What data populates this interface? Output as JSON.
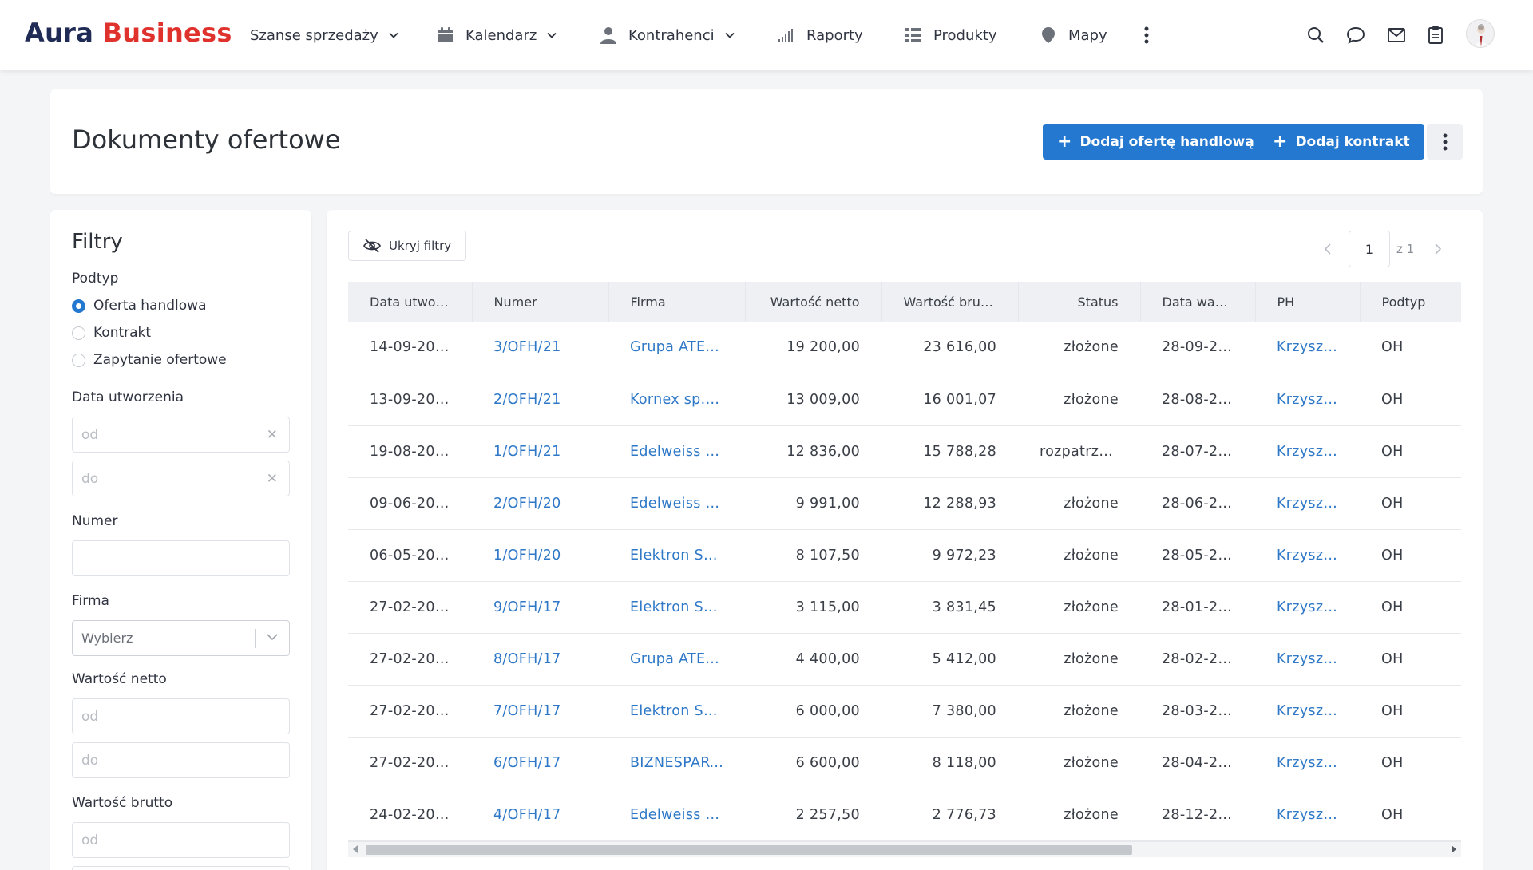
{
  "brand": {
    "part1": "Aura",
    "part2": "Business"
  },
  "nav": [
    {
      "label": "Szanse sprzedaży",
      "icon": "",
      "has_dropdown": true
    },
    {
      "label": "Kalendarz",
      "icon": "calendar-icon",
      "has_dropdown": true
    },
    {
      "label": "Kontrahenci",
      "icon": "person-icon",
      "has_dropdown": true
    },
    {
      "label": "Raporty",
      "icon": "signal-bars-icon",
      "has_dropdown": false
    },
    {
      "label": "Produkty",
      "icon": "list-grid-icon",
      "has_dropdown": false
    },
    {
      "label": "Mapy",
      "icon": "map-pin-icon",
      "has_dropdown": false
    }
  ],
  "header": {
    "title": "Dokumenty ofertowe",
    "add_offer_label": "Dodaj ofertę handlową",
    "add_contract_label": "Dodaj kontrakt"
  },
  "filters": {
    "title": "Filtry",
    "subtype_label": "Podtyp",
    "subtype_options": [
      "Oferta handlowa",
      "Kontrakt",
      "Zapytanie ofertowe"
    ],
    "subtype_selected": "Oferta handlowa",
    "created_label": "Data utworzenia",
    "from_placeholder": "od",
    "to_placeholder": "do",
    "number_label": "Numer",
    "number_value": "",
    "company_label": "Firma",
    "company_placeholder": "Wybierz",
    "net_label": "Wartość netto",
    "gross_label": "Wartość brutto"
  },
  "toolbar": {
    "hide_filters_label": "Ukryj filtry",
    "page_current": "1",
    "page_total_label": "z 1"
  },
  "table": {
    "columns": [
      "Data utworzenia",
      "Numer",
      "Firma",
      "Wartość netto",
      "Wartość brutto",
      "Status",
      "Data ważności",
      "PH",
      "Podtyp"
    ],
    "columns_display": [
      "Data utwor…",
      "Numer",
      "Firma",
      "Wartość netto",
      "Wartość brut…",
      "Status",
      "Data waż…",
      "PH",
      "Podtyp"
    ],
    "rows": [
      [
        "14-09-20…",
        "3/OFH/21",
        "Grupa ATE…",
        "19 200,00",
        "23 616,00",
        "złożone",
        "28-09-2…",
        "Krzyszt…",
        "OH"
      ],
      [
        "13-09-20…",
        "2/OFH/21",
        "Kornex sp. …",
        "13 009,00",
        "16 001,07",
        "złożone",
        "28-08-2…",
        "Krzyszt…",
        "OH"
      ],
      [
        "19-08-20…",
        "1/OFH/21",
        "Edelweiss S…",
        "12 836,00",
        "15 788,28",
        "rozpatrzo…",
        "28-07-2…",
        "Krzyszt…",
        "OH"
      ],
      [
        "09-06-20…",
        "2/OFH/20",
        "Edelweiss S…",
        "9 991,00",
        "12 288,93",
        "złożone",
        "28-06-2…",
        "Krzyszt…",
        "OH"
      ],
      [
        "06-05-20…",
        "1/OFH/20",
        "Elektron Sp…",
        "8 107,50",
        "9 972,23",
        "złożone",
        "28-05-2…",
        "Krzyszt…",
        "OH"
      ],
      [
        "27-02-20…",
        "9/OFH/17",
        "Elektron Sp…",
        "3 115,00",
        "3 831,45",
        "złożone",
        "28-01-2…",
        "Krzyszt…",
        "OH"
      ],
      [
        "27-02-20…",
        "8/OFH/17",
        "Grupa ATE…",
        "4 400,00",
        "5 412,00",
        "złożone",
        "28-02-2…",
        "Krzyszt…",
        "OH"
      ],
      [
        "27-02-20…",
        "7/OFH/17",
        "Elektron Sp…",
        "6 000,00",
        "7 380,00",
        "złożone",
        "28-03-2…",
        "Krzyszt…",
        "OH"
      ],
      [
        "27-02-20…",
        "6/OFH/17",
        "BIZNESPART…",
        "6 600,00",
        "8 118,00",
        "złożone",
        "28-04-2…",
        "Krzyszt…",
        "OH"
      ],
      [
        "24-02-20…",
        "4/OFH/17",
        "Edelweiss S…",
        "2 257,50",
        "2 776,73",
        "złożone",
        "28-12-2…",
        "Krzyszt…",
        "OH"
      ]
    ]
  },
  "colors": {
    "accent": "#2478cf",
    "link": "#2e78c7",
    "brand_dark": "#1f2a55",
    "brand_red": "#e0322d"
  }
}
